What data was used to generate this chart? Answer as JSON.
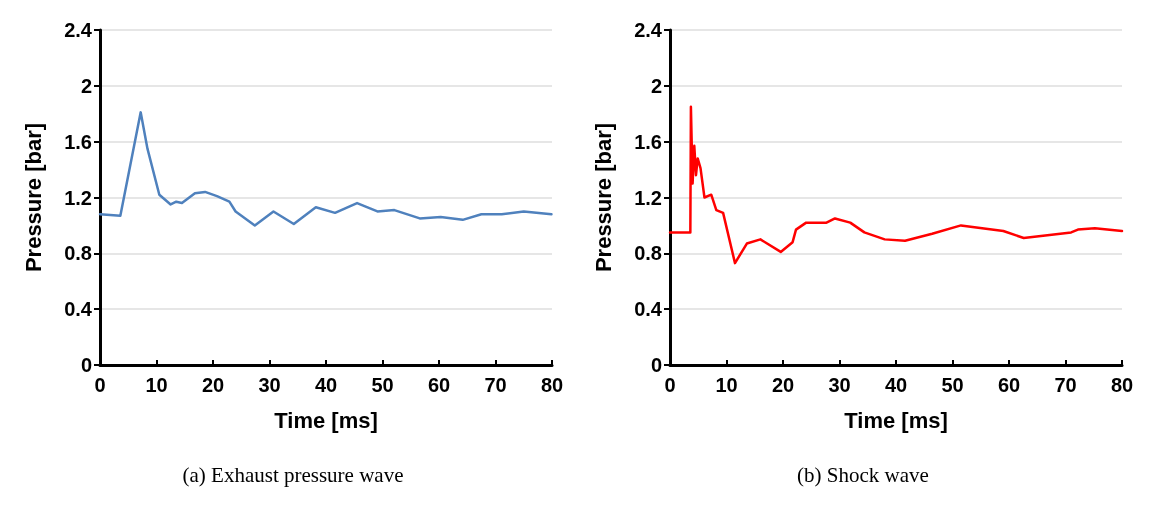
{
  "chart_data": [
    {
      "type": "line",
      "title": "(a) Exhaust pressure wave",
      "xlabel": "Time [ms]",
      "ylabel": "Pressure [bar]",
      "xlim": [
        0,
        80
      ],
      "xticks": [
        0,
        10,
        20,
        30,
        40,
        50,
        60,
        70,
        80
      ],
      "ylim": [
        0,
        2.4
      ],
      "yticks": [
        0,
        0.4,
        0.8,
        1.2,
        1.6,
        2,
        2.4
      ],
      "grid": "y",
      "marker": "none",
      "series": [
        {
          "color": "#4f81bd",
          "x": [
            0,
            3.6,
            7.2,
            8.4,
            10.5,
            12.5,
            13.5,
            14.5,
            16.8,
            18.6,
            20.7,
            22.9,
            24,
            27.4,
            30.7,
            34.3,
            38.2,
            41.6,
            45.5,
            49.1,
            52.1,
            56.6,
            60.3,
            64.2,
            67.5,
            71.1,
            75,
            79.9
          ],
          "values": [
            1.08,
            1.07,
            1.81,
            1.55,
            1.22,
            1.15,
            1.17,
            1.16,
            1.23,
            1.24,
            1.21,
            1.17,
            1.1,
            1.0,
            1.1,
            1.01,
            1.13,
            1.09,
            1.16,
            1.1,
            1.11,
            1.05,
            1.06,
            1.04,
            1.08,
            1.08,
            1.1,
            1.08
          ]
        }
      ]
    },
    {
      "type": "line",
      "title": "(b) Shock wave",
      "xlabel": "Time [ms]",
      "ylabel": "Pressure [bar]",
      "xlim": [
        0,
        80
      ],
      "xticks": [
        0,
        10,
        20,
        30,
        40,
        50,
        60,
        70,
        80
      ],
      "ylim": [
        0,
        2.4
      ],
      "yticks": [
        0,
        0.4,
        0.8,
        1.2,
        1.6,
        2,
        2.4
      ],
      "grid": "y",
      "marker": "none",
      "series": [
        {
          "color": "#ff0000",
          "x": [
            0,
            3.6,
            3.7,
            4.0,
            4.3,
            4.6,
            4.9,
            5.4,
            6.1,
            7.3,
            8.2,
            9.4,
            11.5,
            13.6,
            16.0,
            19.6,
            21.7,
            22.3,
            24.1,
            27.7,
            29.2,
            31.9,
            34.4,
            38,
            41.6,
            46.4,
            51.5,
            59,
            62.6,
            71,
            72.2,
            75.2,
            80
          ],
          "values": [
            0.95,
            0.95,
            1.85,
            1.3,
            1.57,
            1.36,
            1.48,
            1.41,
            1.2,
            1.22,
            1.11,
            1.09,
            0.73,
            0.87,
            0.9,
            0.81,
            0.88,
            0.97,
            1.02,
            1.02,
            1.05,
            1.02,
            0.95,
            0.9,
            0.89,
            0.94,
            1.0,
            0.96,
            0.91,
            0.95,
            0.97,
            0.98,
            0.96
          ]
        }
      ]
    }
  ]
}
